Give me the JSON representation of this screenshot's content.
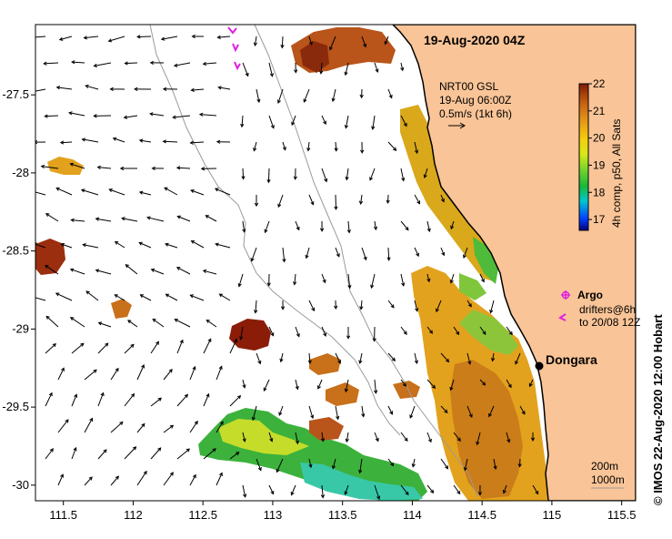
{
  "map": {
    "title": "19-Aug-2020 04Z",
    "current_info": [
      "NRT00 GSL",
      "19-Aug 06:00Z",
      "0.5m/s (1kt 6h)"
    ],
    "colorbar": {
      "label": "4h comp, p50, All Sats",
      "ticks": [
        "22",
        "21",
        "20",
        "19",
        "18",
        "17"
      ],
      "min": 16.6,
      "max": 22,
      "colors": [
        "#00007a",
        "#0040ff",
        "#00c8d0",
        "#17b83a",
        "#7ad62b",
        "#d8e817",
        "#f4cf0f",
        "#e59a17",
        "#c86414",
        "#a03c0a",
        "#7a1a06"
      ]
    },
    "x_ticks": [
      "111.5",
      "112",
      "112.5",
      "113",
      "113.5",
      "114",
      "114.5",
      "115",
      "115.5"
    ],
    "y_ticks": [
      "-27.5",
      "-28",
      "-28.5",
      "-29",
      "-29.5",
      "-30"
    ],
    "lon_range": [
      111.3,
      115.6
    ],
    "lat_range": [
      -27.05,
      -30.1
    ],
    "place": {
      "name": "Dongara",
      "lon": 114.93,
      "lat": -29.25
    },
    "legend": {
      "argo_label": "Argo",
      "drifters_label": "drifters@6h",
      "drifters_sub": "to 20/08 12Z"
    },
    "scale": {
      "contour1": "200m",
      "contour2": "1000m"
    },
    "credit": "©  IMOS 22-Aug-2020 12:00 Hobart",
    "colors": {
      "land": "#f9c497",
      "coast": "#000000",
      "bathy": "#9a9a9a",
      "drifter": "#e020e0",
      "argo": "#e020e0"
    }
  }
}
